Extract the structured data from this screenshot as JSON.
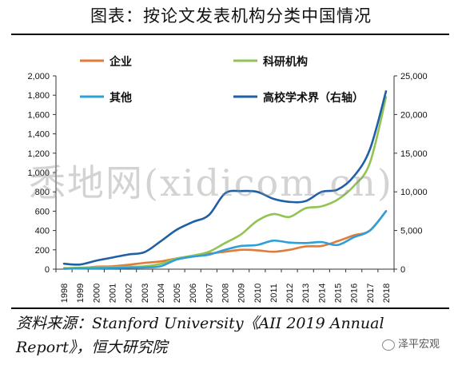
{
  "title": "图表：按论文发表机构分类中国情况",
  "source": "资料来源：Stanford University《AII 2019 Annual Report》，恒大研究院",
  "watermark": "悉地网(xidicom.cn)",
  "wechat_label": "泽平宏观",
  "chart_data": {
    "type": "line",
    "title": "图表：按论文发表机构分类中国情况",
    "x": [
      "1998",
      "1999",
      "2000",
      "2001",
      "2002",
      "2003",
      "2004",
      "2005",
      "2006",
      "2007",
      "2008",
      "2009",
      "2010",
      "2011",
      "2012",
      "2013",
      "2014",
      "2015",
      "2016",
      "2017",
      "2018"
    ],
    "y_left_ticks": [
      "0",
      "200",
      "400",
      "600",
      "800",
      "1,000",
      "1,200",
      "1,400",
      "1,600",
      "1,800",
      "2,000"
    ],
    "y_right_ticks": [
      "0",
      "5,000",
      "10,000",
      "15,000",
      "20,000",
      "25,000"
    ],
    "ylim_left": [
      0,
      2000
    ],
    "ylim_right": [
      0,
      25000
    ],
    "legend_position": "top",
    "grid": false,
    "series": [
      {
        "name": "企业",
        "axis": "left",
        "color": "#E07B39",
        "values": [
          5,
          10,
          25,
          30,
          45,
          65,
          80,
          110,
          130,
          160,
          180,
          200,
          195,
          180,
          200,
          235,
          240,
          290,
          350,
          400,
          600
        ]
      },
      {
        "name": "科研机构",
        "axis": "left",
        "color": "#92C353",
        "values": [
          10,
          15,
          20,
          22,
          25,
          30,
          55,
          110,
          140,
          180,
          270,
          360,
          500,
          570,
          540,
          630,
          650,
          720,
          860,
          1100,
          1780
        ]
      },
      {
        "name": "其他",
        "axis": "left",
        "color": "#2E9FD8",
        "values": [
          5,
          8,
          10,
          12,
          15,
          18,
          30,
          100,
          130,
          150,
          200,
          240,
          250,
          295,
          275,
          270,
          280,
          250,
          330,
          400,
          600
        ]
      },
      {
        "name": "高校学术界（右轴）",
        "axis": "right",
        "color": "#1F5FA5",
        "values": [
          700,
          600,
          1100,
          1500,
          1900,
          2200,
          3600,
          5100,
          6100,
          7000,
          9800,
          10100,
          10000,
          9100,
          8700,
          8800,
          10000,
          10300,
          12000,
          15500,
          23000
        ]
      }
    ]
  }
}
